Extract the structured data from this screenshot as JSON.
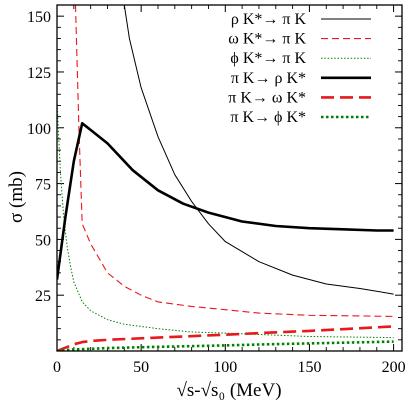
{
  "chart_data": {
    "type": "line",
    "xlabel": "√s-√s₀ (MeV)",
    "ylabel": "σ (mb)",
    "xlim": [
      0,
      205
    ],
    "ylim": [
      0,
      155
    ],
    "xticks": [
      0,
      50,
      100,
      150,
      200
    ],
    "yticks": [
      25,
      50,
      75,
      100,
      125,
      150
    ],
    "grid": false,
    "legend_position": "top-right",
    "series": [
      {
        "name": "ρ K*→ π K",
        "color": "#000000",
        "width": 1.0,
        "dash": "solid",
        "x": [
          40,
          43,
          50,
          60,
          70,
          80,
          90,
          100,
          120,
          140,
          160,
          180,
          200
        ],
        "y": [
          155,
          140,
          118,
          96,
          79,
          67,
          57,
          49,
          40,
          34,
          30,
          28,
          25.5
        ]
      },
      {
        "name": "ω K*→ π K",
        "color": "#e8191c",
        "width": 1.1,
        "dash": "7,4",
        "x": [
          11,
          13,
          15,
          20,
          30,
          40,
          50,
          60,
          80,
          100,
          120,
          150,
          200
        ],
        "y": [
          155,
          100,
          57,
          48,
          35,
          29,
          25,
          22,
          20,
          18.5,
          17,
          16,
          15.5
        ]
      },
      {
        "name": "ϕ K*→ π K",
        "color": "#008000",
        "width": 1.0,
        "dash": "1.5,1.8",
        "x": [
          0,
          2,
          4,
          6,
          8,
          10,
          15,
          20,
          30,
          40,
          60,
          80,
          100,
          150,
          200
        ],
        "y": [
          112,
          80,
          60,
          47,
          38,
          31,
          22,
          18,
          14,
          12,
          10,
          8.5,
          8,
          6.5,
          6
        ]
      },
      {
        "name": "π K→ ρ K*",
        "color": "#000000",
        "width": 2.6,
        "dash": "solid",
        "x": [
          0,
          5,
          10,
          15,
          20,
          30,
          45,
          60,
          75,
          90,
          110,
          130,
          150,
          170,
          190,
          200
        ],
        "y": [
          32,
          60,
          85,
          102,
          99,
          93,
          81,
          72,
          66,
          62,
          58,
          56,
          55,
          54.5,
          54,
          54
        ]
      },
      {
        "name": "π K→ ω K*",
        "color": "#e8191c",
        "width": 2.6,
        "dash": "13,6",
        "x": [
          0,
          5,
          10,
          15,
          20,
          30,
          50,
          75,
          100,
          125,
          150,
          175,
          200
        ],
        "y": [
          0,
          1.5,
          3,
          4,
          4.5,
          5,
          5.7,
          6.5,
          7.3,
          8.2,
          9,
          10,
          11
        ]
      },
      {
        "name": "π K→ ϕ K*",
        "color": "#008000",
        "width": 2.6,
        "dash": "2.5,2.5",
        "x": [
          0,
          5,
          10,
          20,
          30,
          50,
          75,
          100,
          125,
          150,
          175,
          200
        ],
        "y": [
          0,
          0.4,
          0.7,
          1.0,
          1.3,
          1.7,
          2.1,
          2.5,
          3.0,
          3.4,
          3.8,
          4.2
        ]
      }
    ]
  }
}
